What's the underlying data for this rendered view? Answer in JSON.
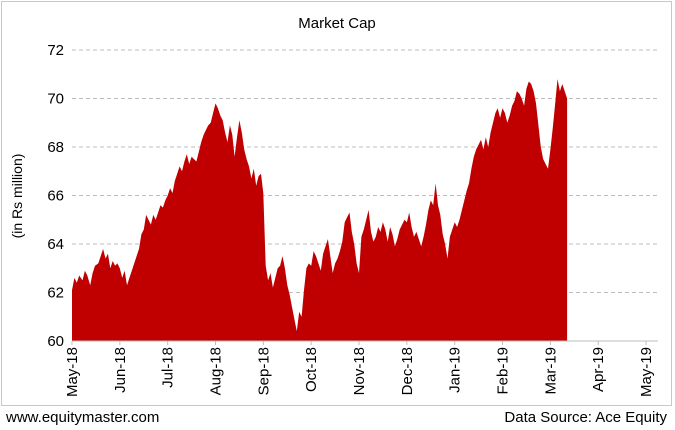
{
  "chart_data": {
    "type": "area",
    "title": "Market Cap",
    "ylabel": "(in Rs million)",
    "xlabel": "",
    "ylim": [
      60,
      72
    ],
    "yticks": [
      60,
      62,
      64,
      66,
      68,
      70,
      72
    ],
    "grid": "horizontal dashed",
    "fill_color": "#c00000",
    "x_tick_labels": [
      "May-18",
      "Jun-18",
      "Jul-18",
      "Aug-18",
      "Sep-18",
      "Oct-18",
      "Nov-18",
      "Dec-18",
      "Jan-19",
      "Feb-19",
      "Mar-19",
      "Apr-19",
      "May-19"
    ],
    "x_range_months": [
      0,
      12.25
    ],
    "points": [
      [
        0.0,
        62.1
      ],
      [
        0.05,
        62.6
      ],
      [
        0.1,
        62.4
      ],
      [
        0.15,
        62.7
      ],
      [
        0.22,
        62.5
      ],
      [
        0.27,
        62.9
      ],
      [
        0.32,
        62.7
      ],
      [
        0.38,
        62.3
      ],
      [
        0.43,
        62.8
      ],
      [
        0.48,
        63.1
      ],
      [
        0.55,
        63.2
      ],
      [
        0.6,
        63.5
      ],
      [
        0.65,
        63.8
      ],
      [
        0.7,
        63.4
      ],
      [
        0.75,
        63.6
      ],
      [
        0.8,
        63.0
      ],
      [
        0.85,
        63.3
      ],
      [
        0.9,
        63.1
      ],
      [
        0.95,
        63.2
      ],
      [
        1.0,
        63.0
      ],
      [
        1.05,
        62.6
      ],
      [
        1.1,
        62.9
      ],
      [
        1.15,
        62.3
      ],
      [
        1.2,
        62.6
      ],
      [
        1.25,
        62.9
      ],
      [
        1.3,
        63.2
      ],
      [
        1.35,
        63.5
      ],
      [
        1.4,
        63.8
      ],
      [
        1.45,
        64.4
      ],
      [
        1.5,
        64.6
      ],
      [
        1.55,
        65.2
      ],
      [
        1.6,
        65.0
      ],
      [
        1.65,
        64.8
      ],
      [
        1.7,
        65.2
      ],
      [
        1.75,
        65.0
      ],
      [
        1.8,
        65.3
      ],
      [
        1.85,
        65.6
      ],
      [
        1.9,
        65.5
      ],
      [
        1.95,
        65.8
      ],
      [
        2.0,
        66.0
      ],
      [
        2.05,
        66.3
      ],
      [
        2.1,
        66.1
      ],
      [
        2.15,
        66.6
      ],
      [
        2.2,
        66.9
      ],
      [
        2.25,
        67.2
      ],
      [
        2.3,
        67.0
      ],
      [
        2.35,
        67.4
      ],
      [
        2.4,
        67.7
      ],
      [
        2.45,
        67.3
      ],
      [
        2.5,
        67.6
      ],
      [
        2.55,
        67.5
      ],
      [
        2.6,
        67.4
      ],
      [
        2.65,
        67.8
      ],
      [
        2.7,
        68.2
      ],
      [
        2.75,
        68.5
      ],
      [
        2.8,
        68.7
      ],
      [
        2.85,
        68.9
      ],
      [
        2.9,
        69.0
      ],
      [
        2.95,
        69.4
      ],
      [
        3.0,
        69.8
      ],
      [
        3.05,
        69.6
      ],
      [
        3.1,
        69.3
      ],
      [
        3.15,
        69.1
      ],
      [
        3.2,
        68.6
      ],
      [
        3.25,
        68.2
      ],
      [
        3.3,
        68.9
      ],
      [
        3.35,
        68.5
      ],
      [
        3.4,
        67.6
      ],
      [
        3.45,
        68.4
      ],
      [
        3.5,
        69.1
      ],
      [
        3.55,
        68.6
      ],
      [
        3.6,
        67.9
      ],
      [
        3.65,
        67.5
      ],
      [
        3.7,
        67.2
      ],
      [
        3.75,
        66.7
      ],
      [
        3.8,
        67.1
      ],
      [
        3.85,
        66.4
      ],
      [
        3.9,
        66.8
      ],
      [
        3.95,
        66.9
      ],
      [
        4.0,
        66.1
      ],
      [
        4.05,
        63.1
      ],
      [
        4.1,
        62.5
      ],
      [
        4.15,
        62.8
      ],
      [
        4.2,
        62.2
      ],
      [
        4.25,
        62.6
      ],
      [
        4.3,
        63.0
      ],
      [
        4.35,
        63.1
      ],
      [
        4.4,
        63.5
      ],
      [
        4.45,
        63.0
      ],
      [
        4.5,
        62.3
      ],
      [
        4.55,
        61.9
      ],
      [
        4.6,
        61.4
      ],
      [
        4.65,
        60.9
      ],
      [
        4.7,
        60.4
      ],
      [
        4.75,
        61.2
      ],
      [
        4.8,
        61.0
      ],
      [
        4.85,
        62.1
      ],
      [
        4.9,
        63.0
      ],
      [
        4.95,
        63.2
      ],
      [
        5.0,
        63.1
      ],
      [
        5.05,
        63.7
      ],
      [
        5.1,
        63.5
      ],
      [
        5.15,
        63.2
      ],
      [
        5.2,
        62.9
      ],
      [
        5.25,
        63.6
      ],
      [
        5.3,
        63.9
      ],
      [
        5.35,
        64.2
      ],
      [
        5.4,
        63.5
      ],
      [
        5.45,
        62.8
      ],
      [
        5.5,
        63.2
      ],
      [
        5.55,
        63.4
      ],
      [
        5.6,
        63.7
      ],
      [
        5.65,
        64.1
      ],
      [
        5.7,
        64.9
      ],
      [
        5.75,
        65.1
      ],
      [
        5.8,
        65.3
      ],
      [
        5.85,
        64.5
      ],
      [
        5.9,
        64.0
      ],
      [
        5.95,
        63.2
      ],
      [
        6.0,
        62.8
      ],
      [
        6.05,
        64.3
      ],
      [
        6.1,
        64.6
      ],
      [
        6.15,
        65.0
      ],
      [
        6.2,
        65.4
      ],
      [
        6.25,
        64.5
      ],
      [
        6.3,
        64.1
      ],
      [
        6.35,
        64.3
      ],
      [
        6.4,
        64.7
      ],
      [
        6.45,
        64.5
      ],
      [
        6.5,
        64.9
      ],
      [
        6.55,
        64.6
      ],
      [
        6.6,
        64.1
      ],
      [
        6.65,
        64.7
      ],
      [
        6.7,
        64.4
      ],
      [
        6.75,
        63.9
      ],
      [
        6.8,
        64.2
      ],
      [
        6.85,
        64.6
      ],
      [
        6.9,
        64.8
      ],
      [
        6.95,
        65.0
      ],
      [
        7.0,
        64.9
      ],
      [
        7.05,
        65.3
      ],
      [
        7.1,
        64.7
      ],
      [
        7.15,
        64.3
      ],
      [
        7.2,
        64.5
      ],
      [
        7.25,
        64.2
      ],
      [
        7.3,
        63.9
      ],
      [
        7.35,
        64.3
      ],
      [
        7.4,
        64.8
      ],
      [
        7.45,
        65.4
      ],
      [
        7.5,
        65.8
      ],
      [
        7.55,
        65.6
      ],
      [
        7.6,
        66.5
      ],
      [
        7.65,
        65.6
      ],
      [
        7.7,
        65.2
      ],
      [
        7.75,
        64.4
      ],
      [
        7.8,
        64.0
      ],
      [
        7.85,
        63.4
      ],
      [
        7.9,
        64.3
      ],
      [
        7.95,
        64.6
      ],
      [
        8.0,
        64.9
      ],
      [
        8.05,
        64.7
      ],
      [
        8.1,
        65.0
      ],
      [
        8.15,
        65.4
      ],
      [
        8.2,
        65.8
      ],
      [
        8.25,
        66.2
      ],
      [
        8.3,
        66.5
      ],
      [
        8.35,
        67.1
      ],
      [
        8.4,
        67.6
      ],
      [
        8.45,
        67.9
      ],
      [
        8.5,
        68.1
      ],
      [
        8.55,
        68.3
      ],
      [
        8.6,
        67.9
      ],
      [
        8.65,
        68.4
      ],
      [
        8.7,
        68.0
      ],
      [
        8.75,
        68.6
      ],
      [
        8.8,
        69.0
      ],
      [
        8.85,
        69.4
      ],
      [
        8.9,
        69.6
      ],
      [
        8.95,
        69.2
      ],
      [
        9.0,
        69.6
      ],
      [
        9.05,
        69.4
      ],
      [
        9.1,
        69.0
      ],
      [
        9.15,
        69.3
      ],
      [
        9.2,
        69.7
      ],
      [
        9.25,
        69.9
      ],
      [
        9.3,
        70.3
      ],
      [
        9.35,
        70.2
      ],
      [
        9.4,
        70.0
      ],
      [
        9.45,
        69.7
      ],
      [
        9.5,
        70.4
      ],
      [
        9.55,
        70.7
      ],
      [
        9.6,
        70.6
      ],
      [
        9.65,
        70.3
      ],
      [
        9.7,
        69.8
      ],
      [
        9.75,
        68.9
      ],
      [
        9.8,
        68.0
      ],
      [
        9.85,
        67.5
      ],
      [
        9.9,
        67.3
      ],
      [
        9.95,
        67.1
      ],
      [
        10.0,
        67.9
      ],
      [
        10.05,
        68.8
      ],
      [
        10.1,
        69.8
      ],
      [
        10.15,
        70.8
      ],
      [
        10.2,
        70.3
      ],
      [
        10.25,
        70.6
      ],
      [
        10.3,
        70.3
      ],
      [
        10.35,
        70.0
      ]
    ]
  },
  "footer": {
    "left": "www.equitymaster.com",
    "right": "Data Source: Ace Equity"
  }
}
